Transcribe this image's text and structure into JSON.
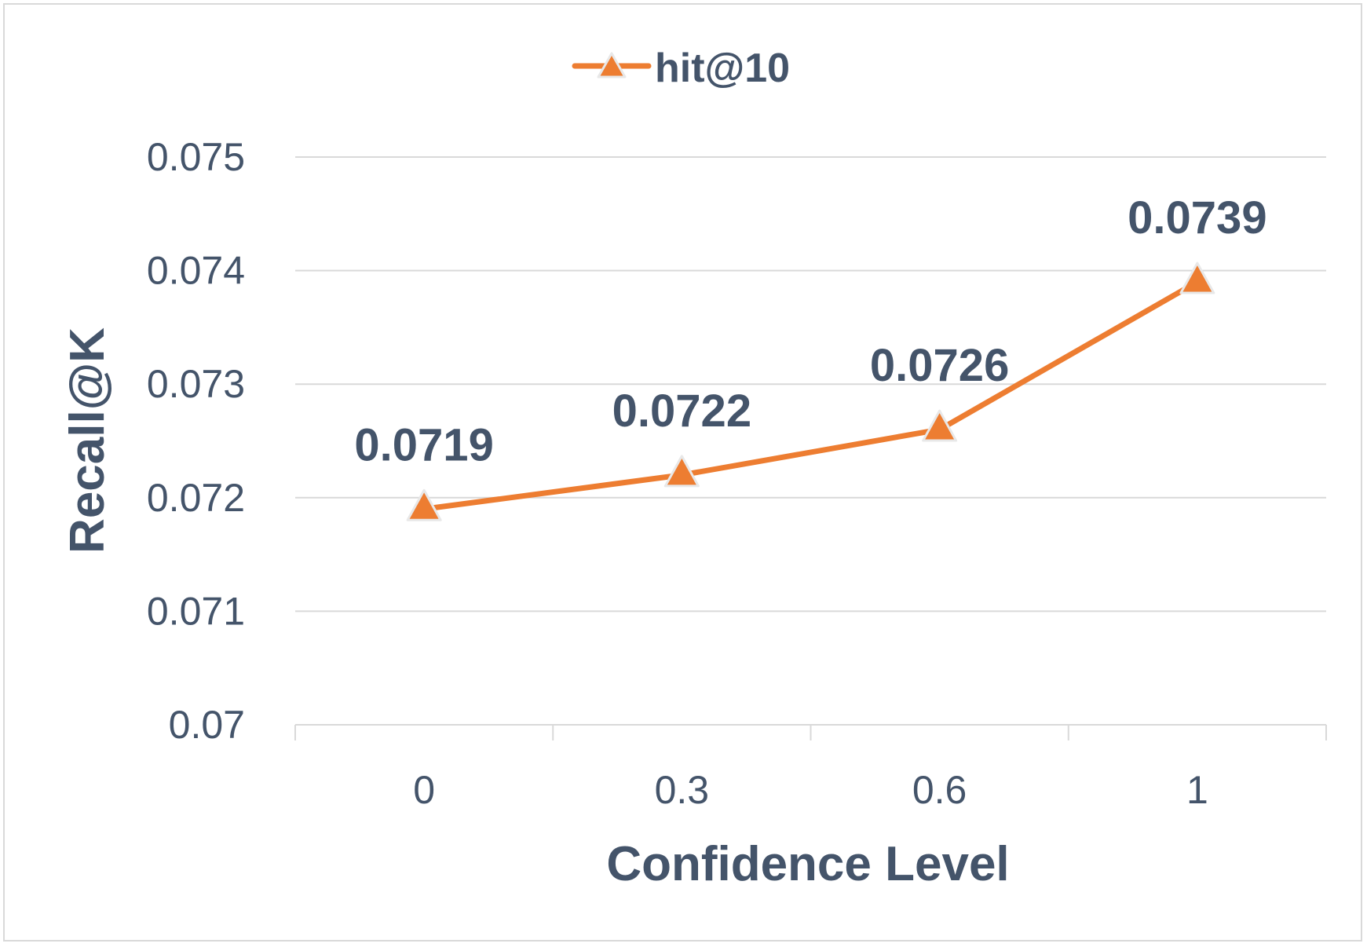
{
  "chart_data": {
    "type": "line",
    "title": "",
    "xlabel": "Confidence Level",
    "ylabel": "Recall@K",
    "categories": [
      "0",
      "0.3",
      "0.6",
      "1"
    ],
    "series": [
      {
        "name": "hit@10",
        "values": [
          0.0719,
          0.0722,
          0.0726,
          0.0739
        ],
        "data_labels": [
          "0.0719",
          "0.0722",
          "0.0726",
          "0.0739"
        ],
        "color": "#ed7d31",
        "marker": "triangle"
      }
    ],
    "ylim": [
      0.07,
      0.075
    ],
    "yticks": [
      0.07,
      0.071,
      0.072,
      0.073,
      0.074,
      0.075
    ],
    "ytick_labels": [
      "0.07",
      "0.071",
      "0.072",
      "0.073",
      "0.074",
      "0.075"
    ],
    "grid": "horizontal",
    "legend_position": "top",
    "colors": {
      "text": "#44546a",
      "grid": "#d9d9d9",
      "series": "#ed7d31"
    }
  }
}
